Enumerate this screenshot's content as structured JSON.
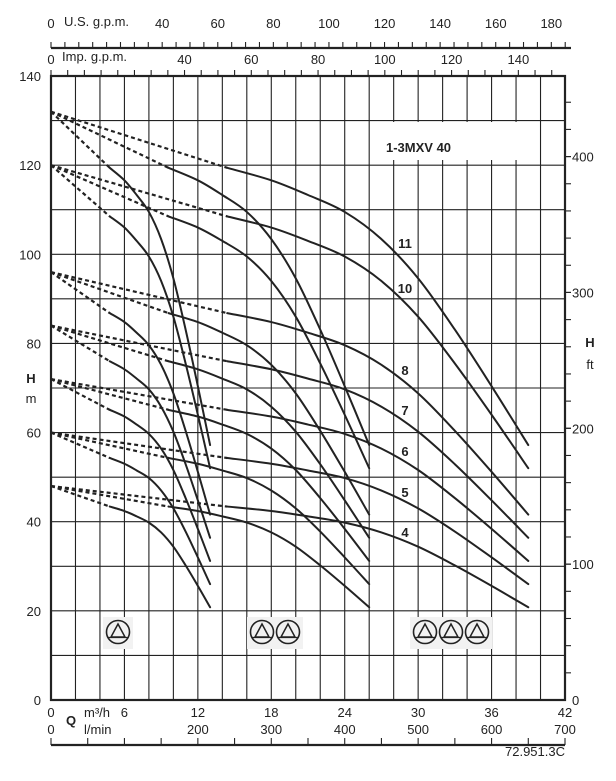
{
  "chart_data": {
    "type": "line",
    "title": "1-3MXV 40",
    "reference": "72.951.3C",
    "x_axis": {
      "symbol": "Q",
      "unit_primary": "m³/h",
      "range_primary": [
        0,
        42
      ],
      "ticks_primary": [
        "0",
        "6",
        "12",
        "18",
        "24",
        "30",
        "36",
        "42"
      ],
      "unit_secondary": "l/min",
      "ticks_secondary": [
        "0",
        "200",
        "300",
        "400",
        "500",
        "600",
        "700"
      ]
    },
    "top_axes": {
      "us_label": "U.S. g.p.m.",
      "us_ticks": [
        "0",
        "40",
        "60",
        "80",
        "100",
        "120",
        "140",
        "160",
        "180"
      ],
      "imp_label": "Imp. g.p.m.",
      "imp_ticks": [
        "0",
        "40",
        "60",
        "80",
        "100",
        "120",
        "140"
      ]
    },
    "y_axis": {
      "symbol": "H",
      "unit": "m",
      "range": [
        0,
        140
      ],
      "ticks": [
        "0",
        "20",
        "40",
        "60",
        "80",
        "100",
        "120",
        "140"
      ]
    },
    "y_axis_right": {
      "symbol": "H",
      "unit": "ft",
      "ticks": [
        "0",
        "100",
        "200",
        "300",
        "400"
      ]
    },
    "grid": true,
    "parallel_pumps": [
      1,
      2,
      3
    ],
    "Q_by_pumps": {
      "1": [
        4.8,
        6,
        7,
        8,
        9,
        10,
        11,
        12,
        13
      ],
      "2": [
        9.6,
        12,
        14,
        16,
        18,
        20,
        22,
        24,
        26
      ],
      "3": [
        14.4,
        18,
        21,
        24,
        27,
        30,
        33,
        36,
        39
      ]
    },
    "series": [
      {
        "name": "11",
        "shutoff_H": 132,
        "H": [
          119.4,
          116.6,
          113.3,
          109.5,
          103.4,
          94.6,
          83.1,
          70.4,
          57.2
        ]
      },
      {
        "name": "10",
        "shutoff_H": 120,
        "H": [
          108.5,
          106,
          103,
          99.5,
          94,
          86,
          75.5,
          64,
          52
        ]
      },
      {
        "name": "8",
        "shutoff_H": 96,
        "H": [
          86.8,
          84.8,
          82.4,
          79.6,
          75.2,
          68.8,
          60.4,
          51.2,
          41.6
        ]
      },
      {
        "name": "7",
        "shutoff_H": 84,
        "H": [
          76,
          74.2,
          72.1,
          69.7,
          65.8,
          60.2,
          52.9,
          44.8,
          36.4
        ]
      },
      {
        "name": "6",
        "shutoff_H": 72,
        "H": [
          65.1,
          63.6,
          61.8,
          59.7,
          56.4,
          51.6,
          45.3,
          38.4,
          31.2
        ]
      },
      {
        "name": "5",
        "shutoff_H": 60,
        "H": [
          54.3,
          53,
          51.5,
          49.8,
          47,
          43,
          37.8,
          32,
          26
        ]
      },
      {
        "name": "4",
        "shutoff_H": 48,
        "H": [
          43.4,
          42.4,
          41.2,
          39.8,
          37.6,
          34.4,
          30.2,
          25.6,
          20.8
        ]
      }
    ],
    "pump_icon": "circle-triangle-pump-icon"
  }
}
